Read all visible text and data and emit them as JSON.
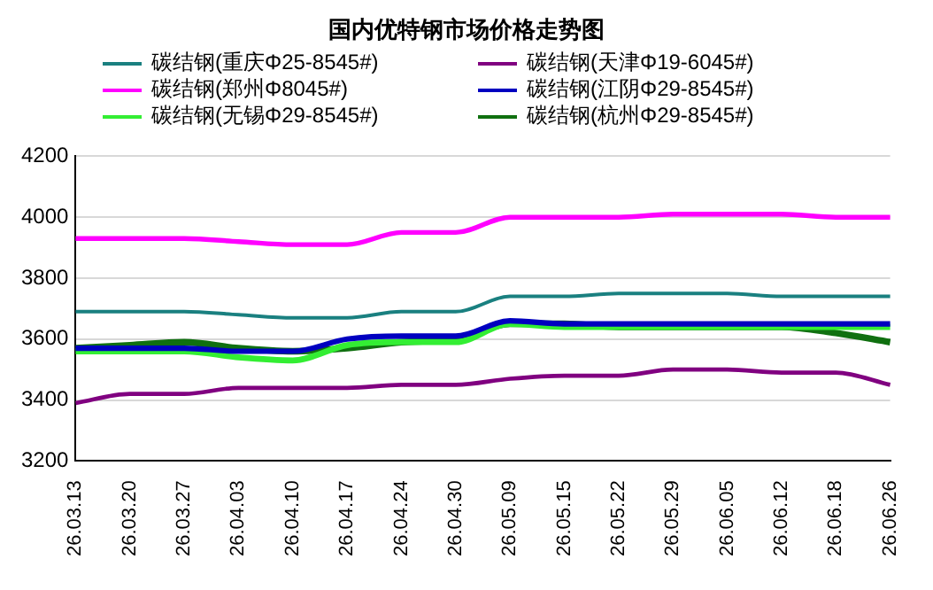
{
  "chart_data": {
    "type": "line",
    "title": "国内优特钢市场价格走势图",
    "categories": [
      "26.03.13",
      "26.03.20",
      "26.03.27",
      "26.04.03",
      "26.04.10",
      "26.04.17",
      "26.04.24",
      "26.04.30",
      "26.05.09",
      "26.05.15",
      "26.05.22",
      "26.05.29",
      "26.06.05",
      "26.06.12",
      "26.06.18",
      "26.06.26"
    ],
    "series": [
      {
        "name": "碳结钢(重庆Φ25-8545#)",
        "color": "#1a8080",
        "values": [
          3690,
          3690,
          3690,
          3680,
          3670,
          3670,
          3690,
          3690,
          3740,
          3740,
          3750,
          3750,
          3750,
          3740,
          3740,
          3740
        ]
      },
      {
        "name": "碳结钢(天津Φ19-6045#)",
        "color": "#800080",
        "values": [
          3390,
          3420,
          3420,
          3440,
          3440,
          3440,
          3450,
          3450,
          3470,
          3480,
          3480,
          3500,
          3500,
          3490,
          3490,
          3450
        ]
      },
      {
        "name": "碳结钢(郑州Φ8045#)",
        "color": "#ff00ff",
        "values": [
          3930,
          3930,
          3930,
          3920,
          3910,
          3910,
          3950,
          3950,
          4000,
          4000,
          4000,
          4010,
          4010,
          4010,
          4000,
          4000
        ]
      },
      {
        "name": "碳结钢(江阴Φ29-8545#)",
        "color": "#0000c0",
        "values": [
          3570,
          3570,
          3570,
          3560,
          3560,
          3600,
          3610,
          3610,
          3660,
          3650,
          3650,
          3650,
          3650,
          3650,
          3650,
          3650
        ]
      },
      {
        "name": "碳结钢(无锡Φ29-8545#)",
        "color": "#33ee33",
        "values": [
          3560,
          3560,
          3560,
          3540,
          3530,
          3580,
          3590,
          3590,
          3650,
          3640,
          3640,
          3640,
          3640,
          3640,
          3640,
          3640
        ]
      },
      {
        "name": "碳结钢(杭州Φ29-8545#)",
        "color": "#107010",
        "values": [
          3570,
          3580,
          3590,
          3570,
          3560,
          3570,
          3590,
          3600,
          3650,
          3650,
          3640,
          3640,
          3640,
          3640,
          3620,
          3590
        ]
      }
    ],
    "ylim": [
      3200,
      4200
    ],
    "yticks": [
      3200,
      3400,
      3600,
      3800,
      4000,
      4200
    ],
    "grid": "y",
    "legend": "top",
    "marker": "none",
    "line_style": "solid"
  }
}
